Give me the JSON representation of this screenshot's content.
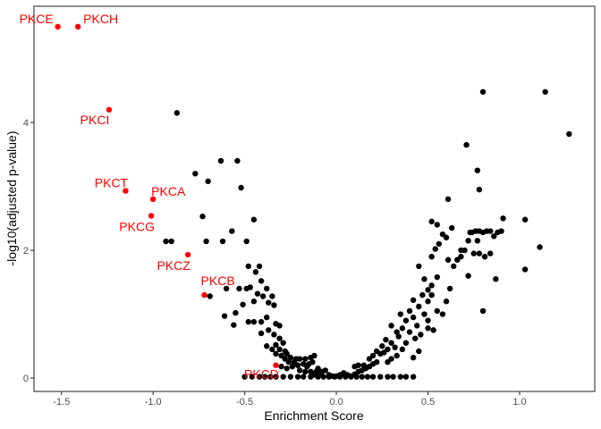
{
  "chart_data": {
    "type": "scatter",
    "title": "",
    "xlabel": "Enrichment Score",
    "ylabel": "-log10(adjusted p-value)",
    "xlim": [
      -1.65,
      1.41
    ],
    "ylim": [
      -0.21,
      5.82
    ],
    "x_ticks": [
      -1.5,
      -1.0,
      -0.5,
      0.0,
      0.5,
      1.0
    ],
    "x_tick_labels": [
      "-1.5",
      "-1.0",
      "-0.5",
      "0.0",
      "0.5",
      "1.0"
    ],
    "y_ticks": [
      0,
      2,
      4
    ],
    "y_tick_labels": [
      "0",
      "2",
      "4"
    ],
    "grid": false,
    "legend": "none",
    "colors": {
      "highlight": "#ff0000",
      "background": "#000000"
    },
    "highlighted": [
      {
        "label": "PKCE",
        "x": -1.52,
        "y": 5.5
      },
      {
        "label": "PKCH",
        "x": -1.41,
        "y": 5.5
      },
      {
        "label": "PKCI",
        "x": -1.24,
        "y": 4.2
      },
      {
        "label": "PKCT",
        "x": -1.15,
        "y": 2.93
      },
      {
        "label": "PKCA",
        "x": -1.0,
        "y": 2.8
      },
      {
        "label": "PKCG",
        "x": -1.01,
        "y": 2.54
      },
      {
        "label": "PKCZ",
        "x": -0.81,
        "y": 1.93
      },
      {
        "label": "PKCB",
        "x": -0.72,
        "y": 1.3
      },
      {
        "label": "PKCD",
        "x": -0.33,
        "y": 0.2
      }
    ],
    "points": [
      [
        -0.87,
        4.15
      ],
      [
        -0.63,
        3.4
      ],
      [
        -0.54,
        3.4
      ],
      [
        -0.77,
        3.2
      ],
      [
        -0.7,
        3.08
      ],
      [
        -0.52,
        2.98
      ],
      [
        -0.73,
        2.53
      ],
      [
        -0.45,
        2.48
      ],
      [
        -0.57,
        2.3
      ],
      [
        -0.93,
        2.14
      ],
      [
        -0.9,
        2.14
      ],
      [
        -0.71,
        2.14
      ],
      [
        -0.62,
        2.14
      ],
      [
        -0.49,
        2.14
      ],
      [
        -0.48,
        1.75
      ],
      [
        -0.42,
        1.75
      ],
      [
        -0.44,
        1.66
      ],
      [
        -0.69,
        1.28
      ],
      [
        -0.6,
        1.4
      ],
      [
        -0.53,
        1.4
      ],
      [
        -0.49,
        1.4
      ],
      [
        -0.47,
        1.42
      ],
      [
        -0.41,
        1.52
      ],
      [
        -0.38,
        1.4
      ],
      [
        -0.35,
        1.28
      ],
      [
        -0.37,
        1.18
      ],
      [
        -0.34,
        1.14
      ],
      [
        -0.4,
        1.28
      ],
      [
        -0.43,
        1.32
      ],
      [
        -0.45,
        1.2
      ],
      [
        -0.51,
        1.15
      ],
      [
        -0.55,
        1.02
      ],
      [
        -0.61,
        0.97
      ],
      [
        -0.48,
        0.88
      ],
      [
        -0.45,
        0.88
      ],
      [
        -0.41,
        0.88
      ],
      [
        -0.38,
        0.95
      ],
      [
        -0.33,
        0.85
      ],
      [
        -0.31,
        0.82
      ],
      [
        -0.56,
        0.83
      ],
      [
        -0.37,
        0.75
      ],
      [
        -0.41,
        0.7
      ],
      [
        -0.34,
        0.68
      ],
      [
        -0.31,
        0.62
      ],
      [
        -0.29,
        0.55
      ],
      [
        -0.33,
        0.52
      ],
      [
        -0.38,
        0.5
      ],
      [
        -0.35,
        0.45
      ],
      [
        -0.31,
        0.45
      ],
      [
        -0.28,
        0.42
      ],
      [
        -0.33,
        0.38
      ],
      [
        -0.3,
        0.35
      ],
      [
        -0.27,
        0.38
      ],
      [
        -0.25,
        0.32
      ],
      [
        -0.22,
        0.3
      ],
      [
        -0.2,
        0.3
      ],
      [
        -0.28,
        0.3
      ],
      [
        -0.26,
        0.25
      ],
      [
        -0.23,
        0.25
      ],
      [
        -0.3,
        0.18
      ],
      [
        -0.27,
        0.15
      ],
      [
        -0.24,
        0.18
      ],
      [
        -0.21,
        0.2
      ],
      [
        -0.18,
        0.22
      ],
      [
        -0.15,
        0.22
      ],
      [
        -0.13,
        0.25
      ],
      [
        -0.17,
        0.3
      ],
      [
        -0.14,
        0.32
      ],
      [
        -0.12,
        0.35
      ],
      [
        -0.16,
        0.18
      ],
      [
        -0.2,
        0.12
      ],
      [
        -0.17,
        0.1
      ],
      [
        -0.14,
        0.1
      ],
      [
        -0.11,
        0.1
      ],
      [
        -0.08,
        0.1
      ],
      [
        -0.1,
        0.15
      ],
      [
        -0.06,
        0.12
      ],
      [
        -0.04,
        0.05
      ],
      [
        -0.02,
        0.03
      ],
      [
        0.0,
        0.03
      ],
      [
        0.02,
        0.05
      ],
      [
        0.04,
        0.08
      ],
      [
        0.06,
        0.05
      ],
      [
        0.08,
        0.03
      ],
      [
        -0.09,
        0.05
      ],
      [
        -0.12,
        0.05
      ],
      [
        -0.5,
        0.02
      ],
      [
        -0.46,
        0.02
      ],
      [
        -0.42,
        0.02
      ],
      [
        -0.39,
        0.02
      ],
      [
        -0.36,
        0.02
      ],
      [
        -0.33,
        0.02
      ],
      [
        -0.29,
        0.02
      ],
      [
        -0.25,
        0.02
      ],
      [
        -0.21,
        0.02
      ],
      [
        -0.18,
        0.02
      ],
      [
        -0.14,
        0.02
      ],
      [
        -0.1,
        0.02
      ],
      [
        -0.07,
        0.02
      ],
      [
        -0.04,
        0.02
      ],
      [
        -0.01,
        0.02
      ],
      [
        0.02,
        0.02
      ],
      [
        0.05,
        0.02
      ],
      [
        0.08,
        0.02
      ],
      [
        0.11,
        0.02
      ],
      [
        0.14,
        0.02
      ],
      [
        0.17,
        0.02
      ],
      [
        0.2,
        0.02
      ],
      [
        0.24,
        0.02
      ],
      [
        0.28,
        0.02
      ],
      [
        0.31,
        0.02
      ],
      [
        0.35,
        0.02
      ],
      [
        0.38,
        0.02
      ],
      [
        0.42,
        0.02
      ],
      [
        0.1,
        0.06
      ],
      [
        0.12,
        0.1
      ],
      [
        0.14,
        0.12
      ],
      [
        0.16,
        0.15
      ],
      [
        0.1,
        0.18
      ],
      [
        0.12,
        0.2
      ],
      [
        0.15,
        0.2
      ],
      [
        0.18,
        0.18
      ],
      [
        0.2,
        0.22
      ],
      [
        0.22,
        0.25
      ],
      [
        0.18,
        0.3
      ],
      [
        0.2,
        0.35
      ],
      [
        0.24,
        0.38
      ],
      [
        0.26,
        0.4
      ],
      [
        0.28,
        0.45
      ],
      [
        0.25,
        0.5
      ],
      [
        0.3,
        0.55
      ],
      [
        0.27,
        0.6
      ],
      [
        0.22,
        0.42
      ],
      [
        0.32,
        0.48
      ],
      [
        0.3,
        0.3
      ],
      [
        0.34,
        0.65
      ],
      [
        0.33,
        0.72
      ],
      [
        0.3,
        0.82
      ],
      [
        0.36,
        0.78
      ],
      [
        0.4,
        0.72
      ],
      [
        0.43,
        0.62
      ],
      [
        0.38,
        0.55
      ],
      [
        0.36,
        0.45
      ],
      [
        0.33,
        0.35
      ],
      [
        0.28,
        0.25
      ],
      [
        0.45,
        0.42
      ],
      [
        0.42,
        0.32
      ],
      [
        0.38,
        0.9
      ],
      [
        0.42,
        0.95
      ],
      [
        0.35,
        1.0
      ],
      [
        0.4,
        1.05
      ],
      [
        0.45,
        1.12
      ],
      [
        0.42,
        1.22
      ],
      [
        0.48,
        1.0
      ],
      [
        0.5,
        0.9
      ],
      [
        0.44,
        0.82
      ],
      [
        0.5,
        0.78
      ],
      [
        0.46,
        0.68
      ],
      [
        0.53,
        0.75
      ],
      [
        0.47,
        1.3
      ],
      [
        0.5,
        1.38
      ],
      [
        0.52,
        1.45
      ],
      [
        0.48,
        1.55
      ],
      [
        0.5,
        1.2
      ],
      [
        0.52,
        1.3
      ],
      [
        0.55,
        1.05
      ],
      [
        0.58,
        1.0
      ],
      [
        0.62,
        1.4
      ],
      [
        0.6,
        1.2
      ],
      [
        0.55,
        1.58
      ],
      [
        0.45,
        1.75
      ],
      [
        0.52,
        1.9
      ],
      [
        0.54,
        2.02
      ],
      [
        0.56,
        2.1
      ],
      [
        0.6,
        2.2
      ],
      [
        0.63,
        2.35
      ],
      [
        0.58,
        2.25
      ],
      [
        0.52,
        2.45
      ],
      [
        0.55,
        2.4
      ],
      [
        0.61,
        1.85
      ],
      [
        0.64,
        1.75
      ],
      [
        0.66,
        1.85
      ],
      [
        0.68,
        1.9
      ],
      [
        0.7,
        2.0
      ],
      [
        0.72,
        2.15
      ],
      [
        0.74,
        2.28
      ],
      [
        0.76,
        2.3
      ],
      [
        0.78,
        2.3
      ],
      [
        0.8,
        2.28
      ],
      [
        0.82,
        2.3
      ],
      [
        0.84,
        2.3
      ],
      [
        0.86,
        2.22
      ],
      [
        0.88,
        2.28
      ],
      [
        0.72,
        1.6
      ],
      [
        0.75,
        1.95
      ],
      [
        0.78,
        1.95
      ],
      [
        0.81,
        1.9
      ],
      [
        0.84,
        1.95
      ],
      [
        0.87,
        1.55
      ],
      [
        0.9,
        2.3
      ],
      [
        0.91,
        2.5
      ],
      [
        0.8,
        1.05
      ],
      [
        0.71,
        3.65
      ],
      [
        0.77,
        3.25
      ],
      [
        0.8,
        4.48
      ],
      [
        0.78,
        2.95
      ],
      [
        0.61,
        2.8
      ],
      [
        1.03,
        2.48
      ],
      [
        1.03,
        1.7
      ],
      [
        1.11,
        2.05
      ],
      [
        1.14,
        4.48
      ],
      [
        1.27,
        3.82
      ],
      [
        0.73,
        2.28
      ],
      [
        0.77,
        2.15
      ],
      [
        0.68,
        2.0
      ]
    ]
  }
}
